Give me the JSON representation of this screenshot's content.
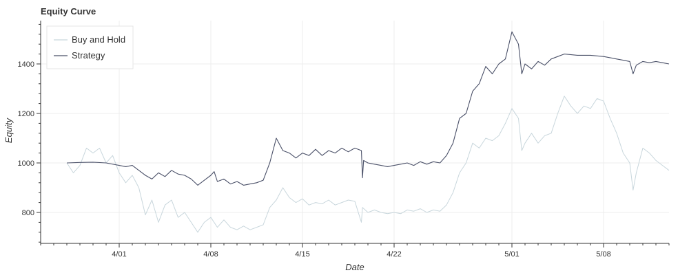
{
  "chart_data": {
    "type": "line",
    "title": "Equity Curve",
    "xlabel": "Date",
    "ylabel": "Equity",
    "x_range": [
      "2020-03-26",
      "2020-05-13"
    ],
    "ylim": [
      675,
      1575
    ],
    "x_ticks": [
      {
        "date": "2020-04-01",
        "label": "4/01"
      },
      {
        "date": "2020-04-08",
        "label": "4/08"
      },
      {
        "date": "2020-04-15",
        "label": "4/15"
      },
      {
        "date": "2020-04-22",
        "label": "4/22"
      },
      {
        "date": "2020-05-01",
        "label": "5/01"
      },
      {
        "date": "2020-05-08",
        "label": "5/08"
      }
    ],
    "y_ticks": [
      800,
      1000,
      1200,
      1400
    ],
    "grid": true,
    "legend_position": "top-left",
    "series": [
      {
        "name": "Buy and Hold",
        "color": "#c8d6dc",
        "points": [
          [
            "2020-03-28",
            1000
          ],
          [
            "2020-03-28T12:00",
            960
          ],
          [
            "2020-03-29",
            990
          ],
          [
            "2020-03-29T12:00",
            1060
          ],
          [
            "2020-03-30",
            1040
          ],
          [
            "2020-03-30T12:00",
            1060
          ],
          [
            "2020-03-31",
            1000
          ],
          [
            "2020-03-31T12:00",
            1030
          ],
          [
            "2020-04-01",
            960
          ],
          [
            "2020-04-01T12:00",
            920
          ],
          [
            "2020-04-02",
            950
          ],
          [
            "2020-04-02T12:00",
            900
          ],
          [
            "2020-04-03",
            790
          ],
          [
            "2020-04-03T12:00",
            850
          ],
          [
            "2020-04-04",
            760
          ],
          [
            "2020-04-04T12:00",
            830
          ],
          [
            "2020-04-05",
            850
          ],
          [
            "2020-04-05T12:00",
            780
          ],
          [
            "2020-04-06",
            800
          ],
          [
            "2020-04-06T12:00",
            760
          ],
          [
            "2020-04-07",
            720
          ],
          [
            "2020-04-07T12:00",
            760
          ],
          [
            "2020-04-08",
            780
          ],
          [
            "2020-04-08T12:00",
            740
          ],
          [
            "2020-04-09",
            770
          ],
          [
            "2020-04-09T12:00",
            740
          ],
          [
            "2020-04-10",
            730
          ],
          [
            "2020-04-10T12:00",
            745
          ],
          [
            "2020-04-11",
            730
          ],
          [
            "2020-04-11T12:00",
            740
          ],
          [
            "2020-04-12",
            750
          ],
          [
            "2020-04-12T12:00",
            820
          ],
          [
            "2020-04-13",
            850
          ],
          [
            "2020-04-13T12:00",
            900
          ],
          [
            "2020-04-14",
            860
          ],
          [
            "2020-04-14T12:00",
            840
          ],
          [
            "2020-04-15",
            855
          ],
          [
            "2020-04-15T12:00",
            830
          ],
          [
            "2020-04-16",
            840
          ],
          [
            "2020-04-16T12:00",
            835
          ],
          [
            "2020-04-17",
            850
          ],
          [
            "2020-04-17T12:00",
            830
          ],
          [
            "2020-04-18",
            840
          ],
          [
            "2020-04-18T12:00",
            850
          ],
          [
            "2020-04-19",
            845
          ],
          [
            "2020-04-19T12:00",
            760
          ],
          [
            "2020-04-19T14:00",
            820
          ],
          [
            "2020-04-20",
            800
          ],
          [
            "2020-04-20T12:00",
            810
          ],
          [
            "2020-04-21",
            800
          ],
          [
            "2020-04-21T12:00",
            795
          ],
          [
            "2020-04-22",
            800
          ],
          [
            "2020-04-22T12:00",
            795
          ],
          [
            "2020-04-23",
            810
          ],
          [
            "2020-04-23T12:00",
            805
          ],
          [
            "2020-04-24",
            815
          ],
          [
            "2020-04-24T12:00",
            800
          ],
          [
            "2020-04-25",
            810
          ],
          [
            "2020-04-25T12:00",
            805
          ],
          [
            "2020-04-26",
            830
          ],
          [
            "2020-04-26T12:00",
            880
          ],
          [
            "2020-04-27",
            960
          ],
          [
            "2020-04-27T12:00",
            1000
          ],
          [
            "2020-04-28",
            1080
          ],
          [
            "2020-04-28T12:00",
            1060
          ],
          [
            "2020-04-29",
            1100
          ],
          [
            "2020-04-29T12:00",
            1090
          ],
          [
            "2020-04-30",
            1110
          ],
          [
            "2020-04-30T12:00",
            1160
          ],
          [
            "2020-05-01",
            1220
          ],
          [
            "2020-05-01T12:00",
            1180
          ],
          [
            "2020-05-01T18:00",
            1050
          ],
          [
            "2020-05-02",
            1080
          ],
          [
            "2020-05-02T12:00",
            1120
          ],
          [
            "2020-05-03",
            1080
          ],
          [
            "2020-05-03T12:00",
            1110
          ],
          [
            "2020-05-04",
            1120
          ],
          [
            "2020-05-04T12:00",
            1200
          ],
          [
            "2020-05-05",
            1270
          ],
          [
            "2020-05-05T12:00",
            1230
          ],
          [
            "2020-05-06",
            1200
          ],
          [
            "2020-05-06T12:00",
            1230
          ],
          [
            "2020-05-07",
            1220
          ],
          [
            "2020-05-07T12:00",
            1260
          ],
          [
            "2020-05-08",
            1250
          ],
          [
            "2020-05-08T12:00",
            1180
          ],
          [
            "2020-05-09",
            1120
          ],
          [
            "2020-05-09T12:00",
            1040
          ],
          [
            "2020-05-10",
            1000
          ],
          [
            "2020-05-10T06:00",
            890
          ],
          [
            "2020-05-10T12:00",
            960
          ],
          [
            "2020-05-11",
            1060
          ],
          [
            "2020-05-11T12:00",
            1040
          ],
          [
            "2020-05-12",
            1010
          ],
          [
            "2020-05-12T12:00",
            990
          ],
          [
            "2020-05-13",
            970
          ]
        ]
      },
      {
        "name": "Strategy",
        "color": "#4a5068",
        "points": [
          [
            "2020-03-28",
            1000
          ],
          [
            "2020-03-29",
            1002
          ],
          [
            "2020-03-30",
            1003
          ],
          [
            "2020-03-31",
            1000
          ],
          [
            "2020-04-01",
            990
          ],
          [
            "2020-04-01T12:00",
            985
          ],
          [
            "2020-04-02",
            990
          ],
          [
            "2020-04-02T12:00",
            970
          ],
          [
            "2020-04-03",
            950
          ],
          [
            "2020-04-03T12:00",
            935
          ],
          [
            "2020-04-04",
            960
          ],
          [
            "2020-04-04T12:00",
            945
          ],
          [
            "2020-04-05",
            970
          ],
          [
            "2020-04-05T12:00",
            955
          ],
          [
            "2020-04-06",
            950
          ],
          [
            "2020-04-06T12:00",
            935
          ],
          [
            "2020-04-07",
            910
          ],
          [
            "2020-04-07T12:00",
            930
          ],
          [
            "2020-04-08",
            950
          ],
          [
            "2020-04-08T06:00",
            965
          ],
          [
            "2020-04-08T12:00",
            925
          ],
          [
            "2020-04-09",
            935
          ],
          [
            "2020-04-09T12:00",
            915
          ],
          [
            "2020-04-10",
            925
          ],
          [
            "2020-04-10T12:00",
            910
          ],
          [
            "2020-04-11",
            915
          ],
          [
            "2020-04-11T12:00",
            920
          ],
          [
            "2020-04-12",
            930
          ],
          [
            "2020-04-12T12:00",
            1000
          ],
          [
            "2020-04-13",
            1100
          ],
          [
            "2020-04-13T12:00",
            1050
          ],
          [
            "2020-04-14",
            1040
          ],
          [
            "2020-04-14T12:00",
            1020
          ],
          [
            "2020-04-15",
            1040
          ],
          [
            "2020-04-15T12:00",
            1030
          ],
          [
            "2020-04-16",
            1055
          ],
          [
            "2020-04-16T12:00",
            1030
          ],
          [
            "2020-04-17",
            1050
          ],
          [
            "2020-04-17T12:00",
            1040
          ],
          [
            "2020-04-18",
            1060
          ],
          [
            "2020-04-18T12:00",
            1045
          ],
          [
            "2020-04-19",
            1060
          ],
          [
            "2020-04-19T12:00",
            1050
          ],
          [
            "2020-04-19T14:00",
            940
          ],
          [
            "2020-04-19T16:00",
            1010
          ],
          [
            "2020-04-20",
            1000
          ],
          [
            "2020-04-20T12:00",
            995
          ],
          [
            "2020-04-21",
            990
          ],
          [
            "2020-04-21T12:00",
            985
          ],
          [
            "2020-04-22",
            990
          ],
          [
            "2020-04-22T12:00",
            995
          ],
          [
            "2020-04-23",
            1000
          ],
          [
            "2020-04-23T12:00",
            990
          ],
          [
            "2020-04-24",
            1005
          ],
          [
            "2020-04-24T12:00",
            995
          ],
          [
            "2020-04-25",
            1005
          ],
          [
            "2020-04-25T12:00",
            1000
          ],
          [
            "2020-04-26",
            1030
          ],
          [
            "2020-04-26T12:00",
            1080
          ],
          [
            "2020-04-27",
            1180
          ],
          [
            "2020-04-27T12:00",
            1200
          ],
          [
            "2020-04-28",
            1290
          ],
          [
            "2020-04-28T12:00",
            1320
          ],
          [
            "2020-04-29",
            1390
          ],
          [
            "2020-04-29T12:00",
            1360
          ],
          [
            "2020-04-30",
            1400
          ],
          [
            "2020-04-30T12:00",
            1420
          ],
          [
            "2020-05-01",
            1530
          ],
          [
            "2020-05-01T12:00",
            1480
          ],
          [
            "2020-05-01T18:00",
            1360
          ],
          [
            "2020-05-02",
            1400
          ],
          [
            "2020-05-02T12:00",
            1380
          ],
          [
            "2020-05-03",
            1410
          ],
          [
            "2020-05-03T12:00",
            1395
          ],
          [
            "2020-05-04",
            1420
          ],
          [
            "2020-05-04T12:00",
            1430
          ],
          [
            "2020-05-05",
            1440
          ],
          [
            "2020-05-06",
            1435
          ],
          [
            "2020-05-07",
            1435
          ],
          [
            "2020-05-08",
            1430
          ],
          [
            "2020-05-09",
            1420
          ],
          [
            "2020-05-09T12:00",
            1415
          ],
          [
            "2020-05-10",
            1410
          ],
          [
            "2020-05-10T06:00",
            1360
          ],
          [
            "2020-05-10T12:00",
            1395
          ],
          [
            "2020-05-11",
            1410
          ],
          [
            "2020-05-11T12:00",
            1405
          ],
          [
            "2020-05-12",
            1410
          ],
          [
            "2020-05-12T12:00",
            1405
          ],
          [
            "2020-05-13",
            1400
          ]
        ]
      }
    ]
  }
}
